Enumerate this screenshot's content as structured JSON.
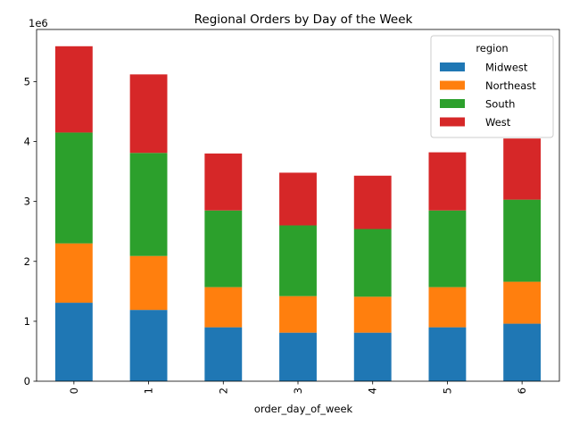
{
  "chart_data": {
    "type": "bar",
    "stacked": true,
    "title": "Regional Orders by Day of the Week",
    "xlabel": "order_day_of_week",
    "ylabel": "",
    "y_offset_text": "1e6",
    "categories": [
      "0",
      "1",
      "2",
      "3",
      "4",
      "5",
      "6"
    ],
    "yticks": [
      "0",
      "1",
      "2",
      "3",
      "4",
      "5"
    ],
    "ylim": [
      0,
      5.87
    ],
    "legend_title": "region",
    "legend_position": "upper-right",
    "series": [
      {
        "name": "Midwest",
        "color": "#1f77b4",
        "values": [
          1.31,
          1.19,
          0.9,
          0.81,
          0.81,
          0.9,
          0.96
        ]
      },
      {
        "name": "Northeast",
        "color": "#ff7f0e",
        "values": [
          0.99,
          0.9,
          0.67,
          0.61,
          0.6,
          0.67,
          0.7
        ]
      },
      {
        "name": "South",
        "color": "#2ca02c",
        "values": [
          1.85,
          1.72,
          1.28,
          1.18,
          1.13,
          1.28,
          1.37
        ]
      },
      {
        "name": "West",
        "color": "#d62728",
        "values": [
          1.44,
          1.31,
          0.95,
          0.88,
          0.89,
          0.97,
          1.02
        ]
      }
    ]
  }
}
